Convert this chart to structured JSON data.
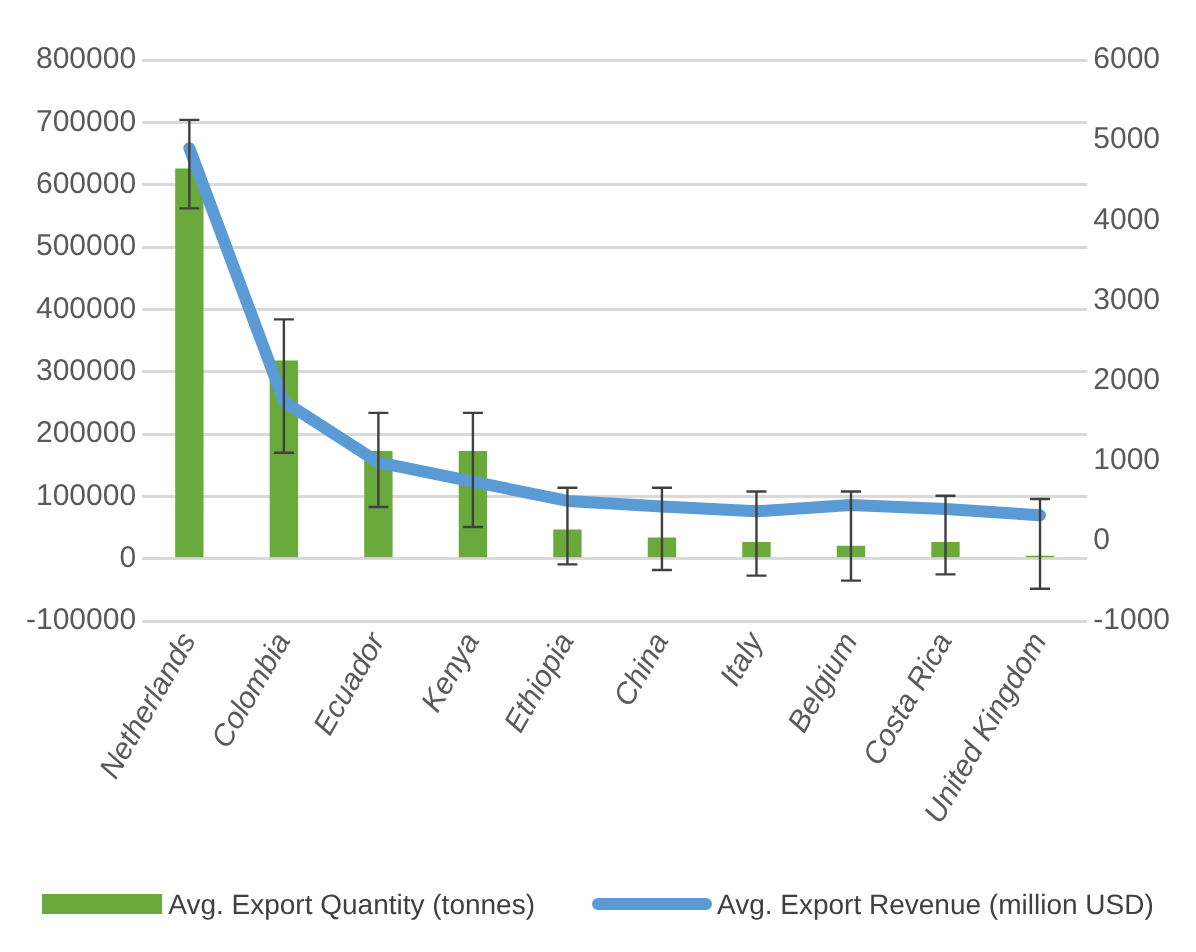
{
  "chart_data": {
    "type": "bar",
    "categories": [
      "Netherlands",
      "Colombia",
      "Ecuador",
      "Kenya",
      "Ethiopia",
      "China",
      "Italy",
      "Belgium",
      "Costa Rica",
      "United Kingdom"
    ],
    "series": [
      {
        "name": "Avg. Export Quantity (tonnes)",
        "color": "#6aaa3c",
        "values": [
          626000,
          318000,
          173000,
          173000,
          47000,
          34000,
          27000,
          21000,
          27000,
          5000
        ],
        "errors": [
          [
            562000,
            704000
          ],
          [
            170000,
            384000
          ],
          [
            83000,
            234000
          ],
          [
            51000,
            234000
          ],
          [
            -9000,
            114000
          ],
          [
            -18000,
            114000
          ],
          [
            -27000,
            108000
          ],
          [
            -35000,
            108000
          ],
          [
            -25000,
            101000
          ],
          [
            -48000,
            96000
          ]
        ]
      },
      {
        "name": "Avg. Export Revenue (million USD)",
        "type": "line",
        "axis": "y2",
        "color": "#5b9bd5",
        "values": [
          4900,
          1740,
          980,
          740,
          500,
          430,
          370,
          450,
          400,
          320
        ]
      }
    ],
    "ylim": [
      -100000,
      800000
    ],
    "yticks": [
      -100000,
      0,
      100000,
      200000,
      300000,
      400000,
      500000,
      600000,
      700000,
      800000
    ],
    "y2lim": [
      -1000,
      6000
    ],
    "y2ticks": [
      -1000,
      0,
      1000,
      2000,
      3000,
      4000,
      5000,
      6000
    ],
    "grid": "y",
    "legend": "bottom",
    "marker": "none",
    "line_style": "solid"
  }
}
